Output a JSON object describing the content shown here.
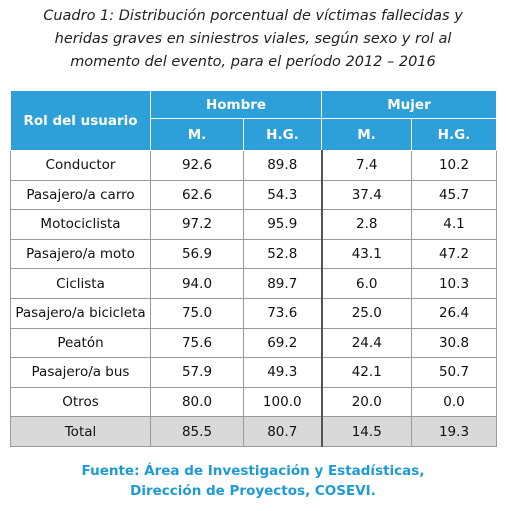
{
  "title": [
    "Cuadro 1: Distribución porcentual de víctimas fallecidas y",
    "heridas graves en siniestros viales, según sexo y rol al",
    "momento del evento, para el período 2012 – 2016"
  ],
  "table": {
    "header": {
      "role": "Rol del usuario",
      "groups": [
        "Hombre",
        "Mujer"
      ],
      "sub": [
        "M.",
        "H.G.",
        "M.",
        "H.G."
      ]
    },
    "rows": [
      [
        "Conductor",
        "92.6",
        "89.8",
        "7.4",
        "10.2"
      ],
      [
        "Pasajero/a carro",
        "62.6",
        "54.3",
        "37.4",
        "45.7"
      ],
      [
        "Motociclista",
        "97.2",
        "95.9",
        "2.8",
        "4.1"
      ],
      [
        "Pasajero/a moto",
        "56.9",
        "52.8",
        "43.1",
        "47.2"
      ],
      [
        "Ciclista",
        "94.0",
        "89.7",
        "6.0",
        "10.3"
      ],
      [
        "Pasajero/a bicicleta",
        "75.0",
        "73.6",
        "25.0",
        "26.4"
      ],
      [
        "Peatón",
        "75.6",
        "69.2",
        "24.4",
        "30.8"
      ],
      [
        "Pasajero/a bus",
        "57.9",
        "49.3",
        "42.1",
        "50.7"
      ],
      [
        "Otros",
        "80.0",
        "100.0",
        "20.0",
        "0.0"
      ],
      [
        "Total",
        "85.5",
        "80.7",
        "14.5",
        "19.3"
      ]
    ]
  },
  "source": [
    "Fuente: Área de Investigación y Estadísticas,",
    "Dirección de Proyectos, COSEVI."
  ]
}
